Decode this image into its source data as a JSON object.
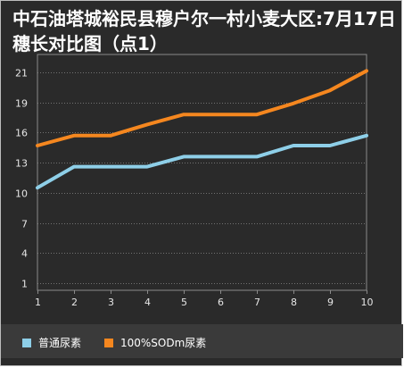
{
  "chart_data": {
    "type": "line",
    "title": "中石油塔城裕民县穆户尔一村小麦大区:7月17日穗长对比图（点1）",
    "x": [
      1,
      2,
      3,
      4,
      5,
      6,
      7,
      8,
      9,
      10
    ],
    "yticks": [
      1,
      4,
      7,
      10,
      13,
      16,
      19,
      21
    ],
    "xlim": [
      1,
      10
    ],
    "grid": true,
    "legend_position": "bottom",
    "series": [
      {
        "name": "普通尿素",
        "color": "#8ecfe8",
        "values": [
          10.5,
          12.6,
          12.6,
          12.6,
          13.6,
          13.6,
          13.6,
          14.7,
          14.7,
          15.7
        ]
      },
      {
        "name": "100%SODm尿素",
        "color": "#f5871f",
        "values": [
          14.7,
          15.7,
          15.7,
          16.8,
          17.8,
          17.8,
          17.8,
          18.9,
          19.8,
          21.1
        ]
      }
    ]
  },
  "legend": {
    "items": [
      {
        "label": "普通尿素",
        "color": "#8ecfe8"
      },
      {
        "label": "100%SODm尿素",
        "color": "#f5871f"
      }
    ]
  }
}
